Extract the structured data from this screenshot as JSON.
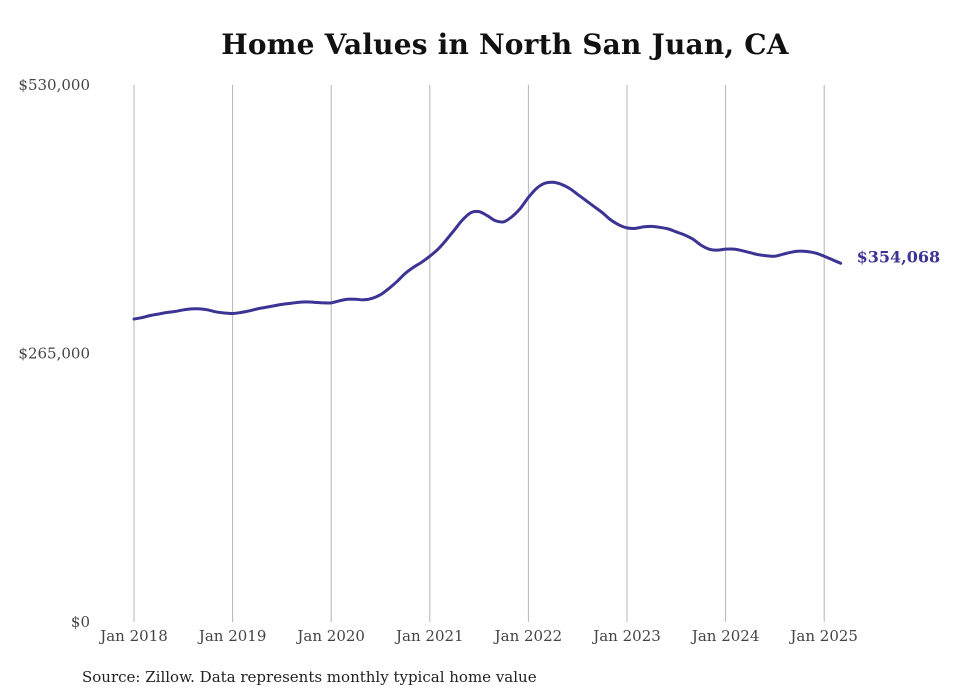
{
  "chart_data": {
    "type": "line",
    "title": "Home Values in North San Juan, CA",
    "xlabel": "",
    "ylabel": "",
    "ylim": [
      0,
      530000
    ],
    "y_ticks": [
      {
        "value": 0,
        "label": "$0"
      },
      {
        "value": 265000,
        "label": "$265,000"
      },
      {
        "value": 530000,
        "label": "$530,000"
      }
    ],
    "x_ticks": [
      {
        "value": "2018-01",
        "label": "Jan 2018"
      },
      {
        "value": "2019-01",
        "label": "Jan 2019"
      },
      {
        "value": "2020-01",
        "label": "Jan 2020"
      },
      {
        "value": "2021-01",
        "label": "Jan 2021"
      },
      {
        "value": "2022-01",
        "label": "Jan 2022"
      },
      {
        "value": "2023-01",
        "label": "Jan 2023"
      },
      {
        "value": "2024-01",
        "label": "Jan 2024"
      },
      {
        "value": "2025-01",
        "label": "Jan 2025"
      }
    ],
    "grid": {
      "vertical": true,
      "horizontal": false
    },
    "line_color": "#3b3494",
    "end_label": "$354,068",
    "series": [
      {
        "points": [
          [
            "2018-01",
            299000
          ],
          [
            "2018-02",
            300500
          ],
          [
            "2018-03",
            302500
          ],
          [
            "2018-04",
            304000
          ],
          [
            "2018-05",
            305500
          ],
          [
            "2018-06",
            306500
          ],
          [
            "2018-07",
            308000
          ],
          [
            "2018-08",
            309000
          ],
          [
            "2018-09",
            309000
          ],
          [
            "2018-10",
            308000
          ],
          [
            "2018-11",
            306000
          ],
          [
            "2018-12",
            305000
          ],
          [
            "2019-01",
            304500
          ],
          [
            "2019-02",
            305500
          ],
          [
            "2019-03",
            307000
          ],
          [
            "2019-04",
            309000
          ],
          [
            "2019-05",
            310500
          ],
          [
            "2019-06",
            312000
          ],
          [
            "2019-07",
            313500
          ],
          [
            "2019-08",
            314500
          ],
          [
            "2019-09",
            315500
          ],
          [
            "2019-10",
            316000
          ],
          [
            "2019-11",
            315500
          ],
          [
            "2019-12",
            315000
          ],
          [
            "2020-01",
            315000
          ],
          [
            "2020-02",
            317000
          ],
          [
            "2020-03",
            318500
          ],
          [
            "2020-04",
            318500
          ],
          [
            "2020-05",
            318000
          ],
          [
            "2020-06",
            319500
          ],
          [
            "2020-07",
            323000
          ],
          [
            "2020-08",
            329000
          ],
          [
            "2020-09",
            336000
          ],
          [
            "2020-10",
            344000
          ],
          [
            "2020-11",
            350000
          ],
          [
            "2020-12",
            355000
          ],
          [
            "2021-01",
            361000
          ],
          [
            "2021-02",
            368000
          ],
          [
            "2021-03",
            377000
          ],
          [
            "2021-04",
            387000
          ],
          [
            "2021-05",
            397000
          ],
          [
            "2021-06",
            404000
          ],
          [
            "2021-07",
            405000
          ],
          [
            "2021-08",
            401000
          ],
          [
            "2021-09",
            396000
          ],
          [
            "2021-10",
            395000
          ],
          [
            "2021-11",
            400000
          ],
          [
            "2021-12",
            408000
          ],
          [
            "2022-01",
            419000
          ],
          [
            "2022-02",
            428000
          ],
          [
            "2022-03",
            433000
          ],
          [
            "2022-04",
            434000
          ],
          [
            "2022-05",
            432000
          ],
          [
            "2022-06",
            428000
          ],
          [
            "2022-07",
            422000
          ],
          [
            "2022-08",
            416000
          ],
          [
            "2022-09",
            410000
          ],
          [
            "2022-10",
            404000
          ],
          [
            "2022-11",
            397000
          ],
          [
            "2022-12",
            392000
          ],
          [
            "2023-01",
            389000
          ],
          [
            "2023-02",
            388500
          ],
          [
            "2023-03",
            390000
          ],
          [
            "2023-04",
            390500
          ],
          [
            "2023-05",
            389500
          ],
          [
            "2023-06",
            388000
          ],
          [
            "2023-07",
            385000
          ],
          [
            "2023-08",
            382000
          ],
          [
            "2023-09",
            378000
          ],
          [
            "2023-10",
            372000
          ],
          [
            "2023-11",
            368000
          ],
          [
            "2023-12",
            367000
          ],
          [
            "2024-01",
            368000
          ],
          [
            "2024-02",
            368000
          ],
          [
            "2024-03",
            366500
          ],
          [
            "2024-04",
            364500
          ],
          [
            "2024-05",
            362500
          ],
          [
            "2024-06",
            361500
          ],
          [
            "2024-07",
            361000
          ],
          [
            "2024-08",
            363000
          ],
          [
            "2024-09",
            365000
          ],
          [
            "2024-10",
            366000
          ],
          [
            "2024-11",
            365500
          ],
          [
            "2024-12",
            364000
          ],
          [
            "2025-01",
            361000
          ],
          [
            "2025-02",
            357500
          ],
          [
            "2025-03",
            354068
          ]
        ]
      }
    ]
  },
  "source_note": "Source: Zillow. Data represents monthly typical home value"
}
